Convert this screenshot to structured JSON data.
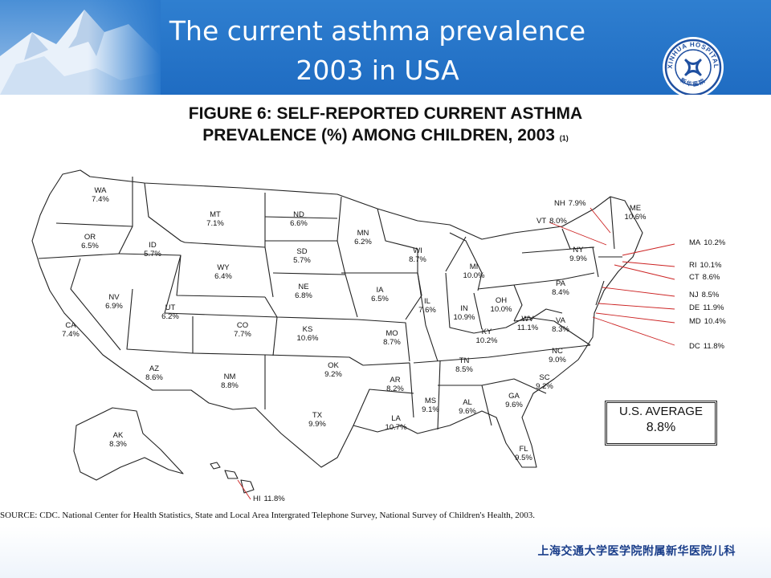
{
  "slide": {
    "title_line1": "The current asthma prevalence",
    "title_line2": "2003 in USA",
    "logo_text": "XINHUA HOSPITAL",
    "logo_cn": "新华医院",
    "footer": "上海交通大学医学院附属新华医院儿科",
    "accent_color": "#1f6cc2"
  },
  "figure": {
    "title_line1": "FIGURE 6: SELF-REPORTED CURRENT ASTHMA",
    "title_line2": "PREVALENCE (%) AMONG CHILDREN, 2003",
    "title_ref": "(1)",
    "average_label": "U.S. AVERAGE",
    "average_value": "8.8%",
    "source": "SOURCE: CDC. National Center for Health Statistics, State and Local Area Intergrated Telephone Survey, National Survey of Children's Health, 2003."
  },
  "states": [
    {
      "abbr": "WA",
      "value": "7.4%"
    },
    {
      "abbr": "OR",
      "value": "6.5%"
    },
    {
      "abbr": "CA",
      "value": "7.4%"
    },
    {
      "abbr": "ID",
      "value": "5.7%"
    },
    {
      "abbr": "NV",
      "value": "6.9%"
    },
    {
      "abbr": "MT",
      "value": "7.1%"
    },
    {
      "abbr": "WY",
      "value": "6.4%"
    },
    {
      "abbr": "UT",
      "value": "6.2%"
    },
    {
      "abbr": "CO",
      "value": "7.7%"
    },
    {
      "abbr": "AZ",
      "value": "8.6%"
    },
    {
      "abbr": "NM",
      "value": "8.8%"
    },
    {
      "abbr": "ND",
      "value": "6.6%"
    },
    {
      "abbr": "SD",
      "value": "5.7%"
    },
    {
      "abbr": "NE",
      "value": "6.8%"
    },
    {
      "abbr": "KS",
      "value": "10.6%"
    },
    {
      "abbr": "OK",
      "value": "9.2%"
    },
    {
      "abbr": "TX",
      "value": "9.9%"
    },
    {
      "abbr": "MN",
      "value": "6.2%"
    },
    {
      "abbr": "IA",
      "value": "6.5%"
    },
    {
      "abbr": "MO",
      "value": "8.7%"
    },
    {
      "abbr": "AR",
      "value": "8.2%"
    },
    {
      "abbr": "LA",
      "value": "10.7%"
    },
    {
      "abbr": "WI",
      "value": "8.7%"
    },
    {
      "abbr": "IL",
      "value": "7.6%"
    },
    {
      "abbr": "MI",
      "value": "10.0%"
    },
    {
      "abbr": "IN",
      "value": "10.9%"
    },
    {
      "abbr": "OH",
      "value": "10.0%"
    },
    {
      "abbr": "KY",
      "value": "10.2%"
    },
    {
      "abbr": "TN",
      "value": "8.5%"
    },
    {
      "abbr": "MS",
      "value": "9.1%"
    },
    {
      "abbr": "AL",
      "value": "9.6%"
    },
    {
      "abbr": "GA",
      "value": "9.6%"
    },
    {
      "abbr": "FL",
      "value": "9.5%"
    },
    {
      "abbr": "SC",
      "value": "9.2%"
    },
    {
      "abbr": "NC",
      "value": "9.0%"
    },
    {
      "abbr": "VA",
      "value": "8.3%"
    },
    {
      "abbr": "WV",
      "value": "11.1%"
    },
    {
      "abbr": "PA",
      "value": "8.4%"
    },
    {
      "abbr": "NY",
      "value": "9.9%"
    },
    {
      "abbr": "ME",
      "value": "10.6%"
    },
    {
      "abbr": "AK",
      "value": "8.3%"
    },
    {
      "abbr": "HI",
      "value": "11.8%"
    },
    {
      "abbr": "NH",
      "value": "7.9%"
    },
    {
      "abbr": "VT",
      "value": "8.0%"
    },
    {
      "abbr": "MA",
      "value": "10.2%"
    },
    {
      "abbr": "RI",
      "value": "10.1%"
    },
    {
      "abbr": "CT",
      "value": "8.6%"
    },
    {
      "abbr": "NJ",
      "value": "8.5%"
    },
    {
      "abbr": "DE",
      "value": "11.9%"
    },
    {
      "abbr": "MD",
      "value": "10.4%"
    },
    {
      "abbr": "DC",
      "value": "11.8%"
    }
  ]
}
